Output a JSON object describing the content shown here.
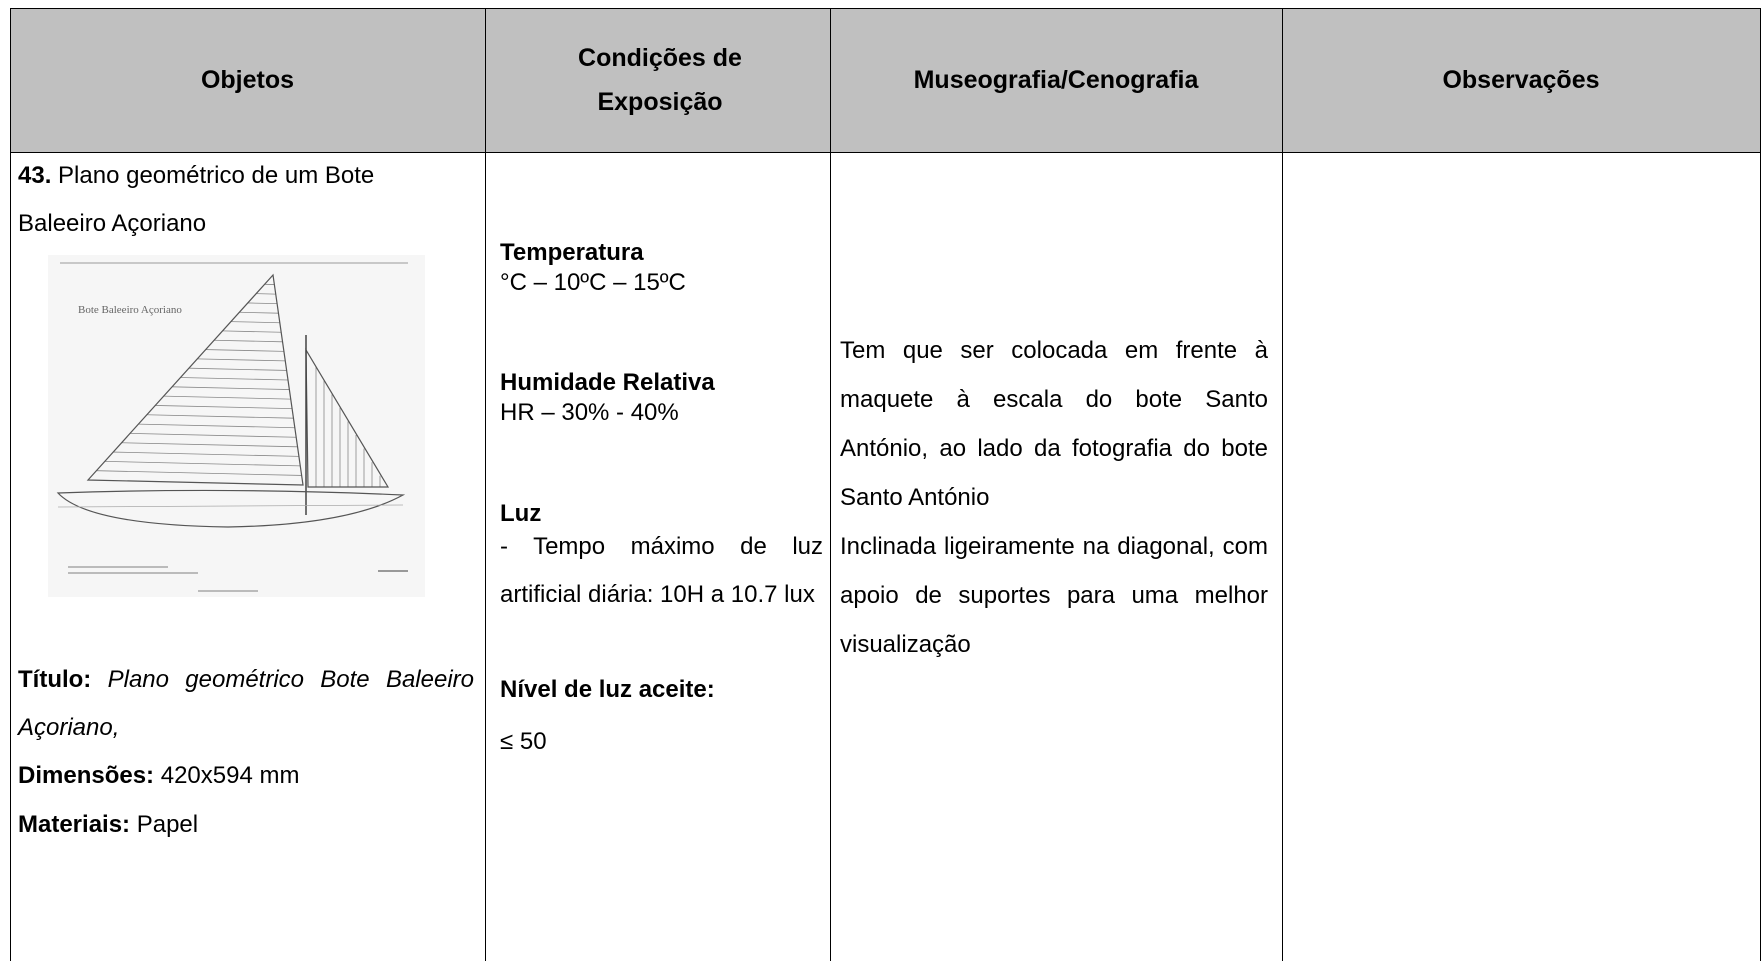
{
  "table": {
    "headers": [
      "Objetos",
      "Condições de Exposição",
      "Museografia/Cenografia",
      "Observações"
    ],
    "rows": [
      {
        "object": {
          "number": "43.",
          "name": "Plano geométrico de um Bote Baleeiro Açoriano",
          "image_label": "Bote Baleeiro Açoriano",
          "title_label": "Título:",
          "title_value": "Plano geométrico Bote Baleeiro Açoriano,",
          "dimensions_label": "Dimensões:",
          "dimensions_value": "420x594 mm",
          "materials_label": "Materiais:",
          "materials_value": "Papel"
        },
        "conditions": {
          "temperature_label": "Temperatura",
          "temperature_value": "°C – 10ºC – 15ºC",
          "humidity_label": "Humidade Relativa",
          "humidity_value": "HR – 30% - 40%",
          "light_label": "Luz",
          "light_value": "- Tempo máximo de luz artificial diária: 10H a 10.7 lux",
          "light_level_label": "Nível de luz aceite:",
          "light_level_value": "≤ 50"
        },
        "museography": [
          "Tem que ser colocada em frente à maquete à escala do bote Santo António, ao lado da fotografia do bote Santo António",
          "Inclinada ligeiramente na diagonal, com apoio de suportes para uma melhor visualização"
        ]
      }
    ]
  }
}
